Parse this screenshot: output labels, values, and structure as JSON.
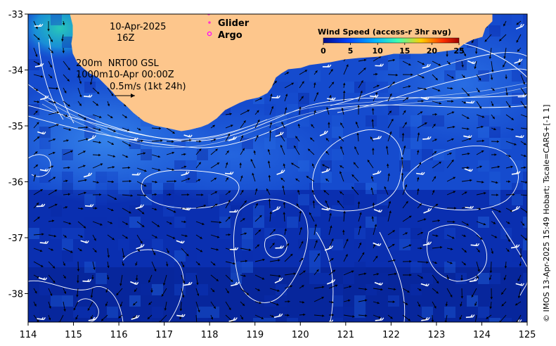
{
  "map": {
    "date_label": "10-Apr-2025",
    "time_label": "16Z",
    "depth_info": [
      "200m  NRT00 GSL",
      "1000m10-Apr 00:00Z"
    ],
    "scale_label": "0.5m/s (1kt 24h)",
    "legend": {
      "glider": "Glider",
      "argo": "Argo"
    },
    "colorbar": {
      "title": "Wind Speed (access-r 3hr avg)",
      "ticks": [
        "0",
        "5",
        "10",
        "15",
        "20",
        "25"
      ],
      "colors": [
        "#000c8a",
        "#0040ff",
        "#00b4ff",
        "#40ffb0",
        "#ffd000",
        "#ff3000",
        "#a00000"
      ]
    },
    "x_ticks": [
      "114",
      "115",
      "116",
      "117",
      "118",
      "119",
      "120",
      "121",
      "122",
      "123",
      "124",
      "125"
    ],
    "y_ticks": [
      "-33",
      "-34",
      "-35",
      "-36",
      "-37",
      "-38"
    ],
    "side_credit": "© IMOS 13-Apr-2025 15:49 Hobart; Tscale=CARS+[-1 1]",
    "colors": {
      "land": "#fdc68c",
      "ocean_deep": "#0a2fb0",
      "ocean_mid": "#1a55d8",
      "ocean_light": "#2a7fe8",
      "coastal_cyan": "#20b0c8",
      "contour": "#ffffff",
      "glider": "#ff33cc",
      "argo": "#ff00ff"
    }
  }
}
